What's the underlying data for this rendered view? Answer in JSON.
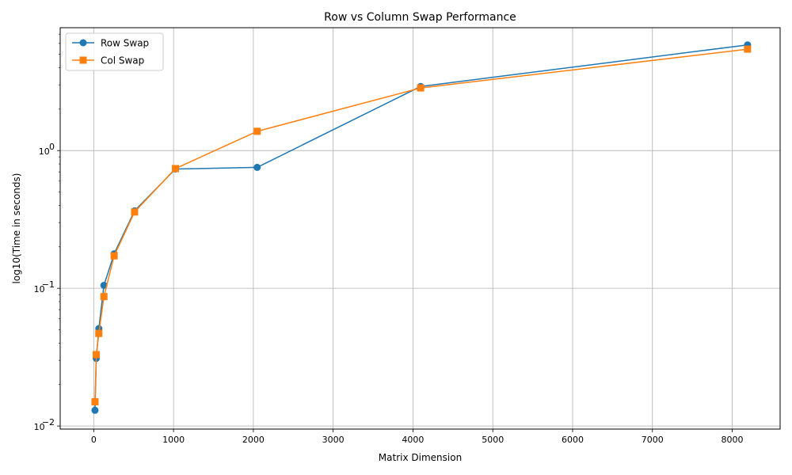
{
  "chart_data": {
    "type": "line",
    "title": "Row vs Column Swap Performance",
    "xlabel": "Matrix Dimension",
    "ylabel": "log10(Time in seconds)",
    "y_scale": "log",
    "grid": true,
    "legend_position": "top-left",
    "xlim": [
      -420,
      8600
    ],
    "ylim": [
      0.0095,
      7.8
    ],
    "x_ticks": [
      0,
      1000,
      2000,
      3000,
      4000,
      5000,
      6000,
      7000,
      8000
    ],
    "x_tick_labels": [
      "0",
      "1000",
      "2000",
      "3000",
      "4000",
      "5000",
      "6000",
      "7000",
      "8000"
    ],
    "y_ticks": [
      0.01,
      0.1,
      1
    ],
    "y_tick_labels": [
      "10",
      "10",
      "10"
    ],
    "y_tick_exponents": [
      "−2",
      "−1",
      "0"
    ],
    "x": [
      16,
      32,
      64,
      128,
      256,
      512,
      1024,
      2048,
      4096,
      8192
    ],
    "series": [
      {
        "name": "Row Swap",
        "color": "#1f77b4",
        "marker": "circle",
        "values": [
          0.013,
          0.031,
          0.051,
          0.105,
          0.178,
          0.365,
          0.735,
          0.755,
          2.92,
          5.85
        ]
      },
      {
        "name": "Col Swap",
        "color": "#ff7f0e",
        "marker": "square",
        "values": [
          0.015,
          0.033,
          0.047,
          0.087,
          0.172,
          0.358,
          0.74,
          1.38,
          2.85,
          5.45
        ]
      }
    ]
  }
}
